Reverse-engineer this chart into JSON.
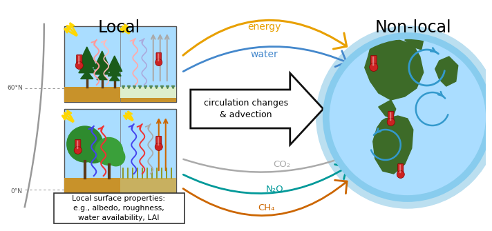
{
  "title_local": "Local",
  "title_nonlocal": "Non-local",
  "label_energy": "energy",
  "label_water": "water",
  "label_co2": "CO₂",
  "label_n2o": "N₂O",
  "label_ch4": "CH₄",
  "label_circ": "circulation changes\n& advection",
  "label_box": "Local surface properties:\ne.g., albedo, roughness,\nwater availability, LAI",
  "label_60n": "60°N",
  "label_0n": "0°N",
  "color_energy": "#E8A000",
  "color_water": "#4488CC",
  "color_co2": "#AAAAAA",
  "color_n2o": "#009999",
  "color_ch4": "#CC6600",
  "color_arrow_circ_fill": "#FFFFFF",
  "color_arrow_circ_edge": "#111111",
  "color_earth_ocean": "#AADDFF",
  "color_earth_land": "#3D6B28",
  "color_earth_ring": "#88CCEE",
  "color_thermometer": "#CC2222",
  "color_blue_arrows": "#3399CC",
  "color_sky": "#AADDFF",
  "color_ground": "#C8922A",
  "bg_color": "#FFFFFF"
}
